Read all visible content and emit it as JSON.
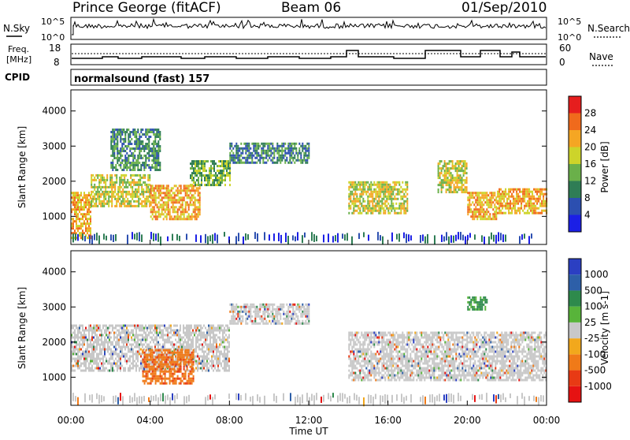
{
  "header": {
    "station": "Prince George (fitACF)",
    "beam": "Beam 06",
    "date": "01/Sep/2010"
  },
  "noise_panel": {
    "left_label": "N.Sky",
    "right_label": "N.Search",
    "left_ticks": [
      "10^5",
      "10^0"
    ],
    "right_ticks": [
      "10^5",
      "10^0"
    ]
  },
  "freq_panel": {
    "left_label_1": "Freq.",
    "left_label_2": "[MHz]",
    "right_label": "Nave",
    "left_ticks": [
      "18",
      "8"
    ],
    "right_ticks": [
      "60",
      "0"
    ]
  },
  "cpid": {
    "label": "CPID",
    "value": "normalsound (fast) 157"
  },
  "x_axis": {
    "label": "Time UT",
    "ticks": [
      "00:00",
      "04:00",
      "08:00",
      "12:00",
      "16:00",
      "20:00",
      "00:00"
    ]
  },
  "colors": {
    "power_scale": [
      "#1b1fe6",
      "#2c4fb0",
      "#2f7d55",
      "#6ab04a",
      "#cdd42a",
      "#f5a623",
      "#f06a1c",
      "#e61e1e"
    ],
    "velocity_scale": [
      "#2b3fc2",
      "#2d5fa8",
      "#2e8a4c",
      "#58b43a",
      "#c8c8c8",
      "#f2a81c",
      "#f07a18",
      "#e83a14",
      "#e61212"
    ]
  },
  "chart_data": [
    {
      "type": "heatmap",
      "title": "",
      "xlabel": "Time UT",
      "ylabel": "Slant Range [km]",
      "xlim_hours": [
        0,
        24
      ],
      "ylim": [
        200,
        4600
      ],
      "yticks": [
        "1000",
        "2000",
        "3000",
        "4000"
      ],
      "colorbar": {
        "label": "Power [dB]",
        "ticks": [
          "4",
          "8",
          "12",
          "16",
          "20",
          "24",
          "28"
        ],
        "range": [
          0,
          30
        ]
      },
      "features": [
        {
          "t": [
            0.0,
            1.0
          ],
          "range": [
            400,
            1700
          ],
          "value": 20
        },
        {
          "t": [
            1.0,
            4.0
          ],
          "range": [
            1300,
            2200
          ],
          "value": 16
        },
        {
          "t": [
            2.0,
            4.5
          ],
          "range": [
            2300,
            3500
          ],
          "value": 10
        },
        {
          "t": [
            4.0,
            6.5
          ],
          "range": [
            900,
            1900
          ],
          "value": 22
        },
        {
          "t": [
            6.0,
            8.0
          ],
          "range": [
            1900,
            2600
          ],
          "value": 14
        },
        {
          "t": [
            8.0,
            12.0
          ],
          "range": [
            2500,
            3100
          ],
          "value": 8
        },
        {
          "t": [
            14.0,
            17.0
          ],
          "range": [
            1100,
            2000
          ],
          "value": 18
        },
        {
          "t": [
            18.5,
            20.0
          ],
          "range": [
            1700,
            2600
          ],
          "value": 18
        },
        {
          "t": [
            20.0,
            21.5
          ],
          "range": [
            900,
            1700
          ],
          "value": 20
        },
        {
          "t": [
            21.5,
            24.0
          ],
          "range": [
            1100,
            1800
          ],
          "value": 22
        }
      ]
    },
    {
      "type": "heatmap",
      "title": "",
      "xlabel": "Time UT",
      "ylabel": "Slant Range [km]",
      "xlim_hours": [
        0,
        24
      ],
      "ylim": [
        200,
        4600
      ],
      "yticks": [
        "1000",
        "2000",
        "3000",
        "4000"
      ],
      "colorbar": {
        "label": "Velocity [m s-1]",
        "ticks": [
          "1000",
          "500",
          "100",
          "25",
          "-25",
          "-100",
          "-500",
          "-1000"
        ],
        "range": [
          -1000,
          1000
        ]
      },
      "features": [
        {
          "t": [
            0.0,
            8.0
          ],
          "range": [
            1200,
            2500
          ],
          "value": 0
        },
        {
          "t": [
            3.6,
            6.2
          ],
          "range": [
            800,
            1800
          ],
          "value": -200
        },
        {
          "t": [
            8.0,
            12.0
          ],
          "range": [
            2500,
            3100
          ],
          "value": 0
        },
        {
          "t": [
            14.0,
            24.0
          ],
          "range": [
            900,
            2300
          ],
          "value": 0
        },
        {
          "t": [
            20.0,
            21.0
          ],
          "range": [
            2900,
            3300
          ],
          "value": 150
        }
      ]
    }
  ]
}
